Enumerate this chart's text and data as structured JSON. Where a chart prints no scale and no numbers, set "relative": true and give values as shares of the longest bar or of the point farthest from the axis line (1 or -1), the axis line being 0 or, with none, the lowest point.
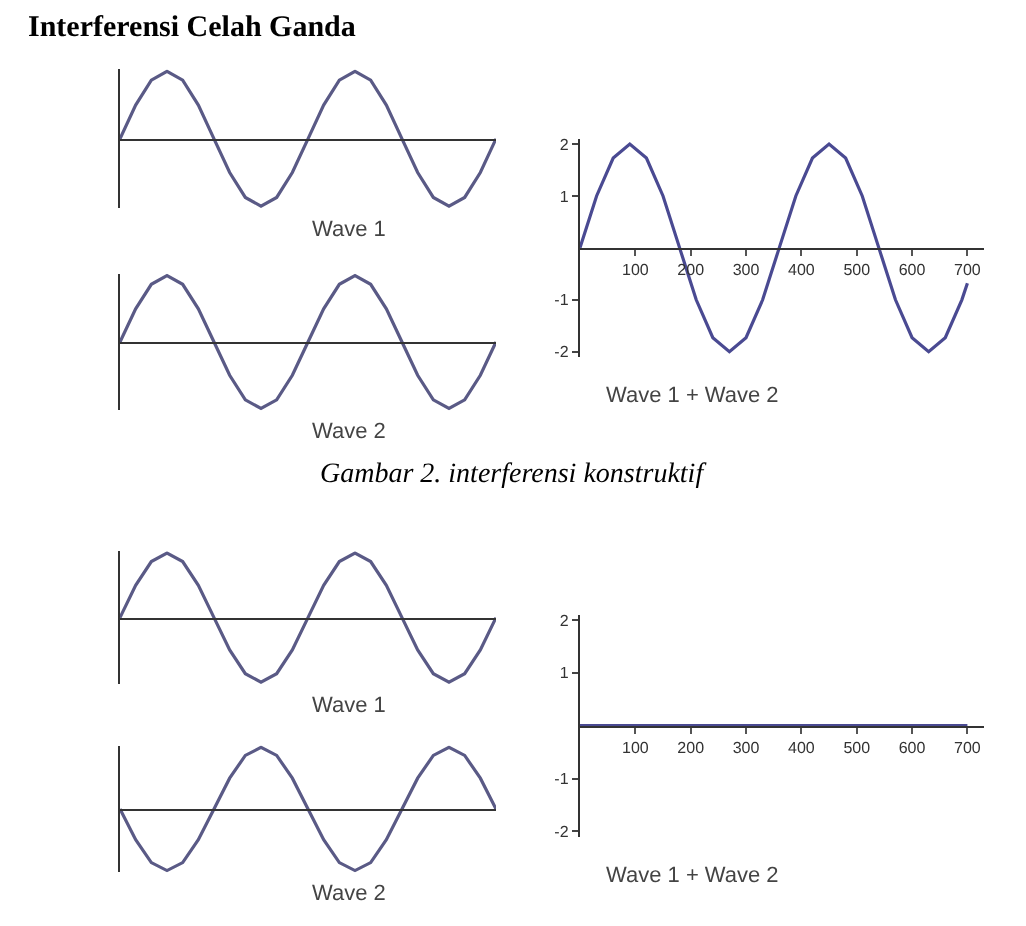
{
  "chart_data": [
    {
      "type": "line",
      "title": "Interferensi Celah Ganda",
      "xlabel": "Wave 1",
      "relative": true,
      "categories": [
        null,
        null,
        null,
        null,
        null,
        null,
        null,
        null,
        null,
        null,
        null,
        null,
        null,
        null,
        null,
        null,
        null,
        null,
        null,
        null,
        null,
        null,
        null,
        null,
        null
      ],
      "series": [
        {
          "color": "#5a5a86",
          "values": [
            0,
            0.5,
            0.87,
            1,
            0.87,
            0.5,
            0,
            -0.5,
            -0.87,
            -1,
            -0.87,
            -0.5,
            0,
            0.5,
            0.87,
            1,
            0.87,
            0.5,
            0,
            -0.5,
            -0.87,
            -1,
            -0.87,
            -0.5,
            0
          ]
        }
      ]
    },
    {
      "type": "line",
      "xlabel": "Wave 2",
      "relative": true,
      "categories": [
        null,
        null,
        null,
        null,
        null,
        null,
        null,
        null,
        null,
        null,
        null,
        null,
        null,
        null,
        null,
        null,
        null,
        null,
        null,
        null,
        null,
        null,
        null,
        null,
        null
      ],
      "series": [
        {
          "color": "#5a5a86",
          "values": [
            0,
            0.5,
            0.87,
            1,
            0.87,
            0.5,
            0,
            -0.5,
            -0.87,
            -1,
            -0.87,
            -0.5,
            0,
            0.5,
            0.87,
            1,
            0.87,
            0.5,
            0,
            -0.5,
            -0.87,
            -1,
            -0.87,
            -0.5,
            0
          ]
        }
      ]
    },
    {
      "type": "line",
      "xlabel": "Wave 1 + Wave 2",
      "annotations": [
        "Gambar 2. interferensi konstruktif"
      ],
      "x": [
        0,
        30,
        60,
        90,
        120,
        150,
        180,
        210,
        240,
        270,
        300,
        330,
        360,
        390,
        420,
        450,
        480,
        510,
        540,
        570,
        600,
        630,
        660,
        690,
        700
      ],
      "xlim": [
        0,
        730
      ],
      "xticks": [
        100,
        200,
        300,
        400,
        500,
        600,
        700
      ],
      "ylim": [
        -2.1,
        2.1
      ],
      "yticks": [
        -2,
        -1,
        1,
        2
      ],
      "series": [
        {
          "color": "#4a4a92",
          "values": [
            0,
            1,
            1.73,
            2,
            1.73,
            1,
            0,
            -1,
            -1.73,
            -2,
            -1.73,
            -1,
            0,
            1,
            1.73,
            2,
            1.73,
            1,
            0,
            -1,
            -1.73,
            -2,
            -1.73,
            -1,
            -0.68
          ]
        }
      ]
    },
    {
      "type": "line",
      "xlabel": "Wave 1",
      "relative": true,
      "categories": [
        null,
        null,
        null,
        null,
        null,
        null,
        null,
        null,
        null,
        null,
        null,
        null,
        null,
        null,
        null,
        null,
        null,
        null,
        null,
        null,
        null,
        null,
        null,
        null,
        null
      ],
      "series": [
        {
          "color": "#5a5a86",
          "values": [
            0,
            0.5,
            0.87,
            1,
            0.87,
            0.5,
            0,
            -0.5,
            -0.87,
            -1,
            -0.87,
            -0.5,
            0,
            0.5,
            0.87,
            1,
            0.87,
            0.5,
            0,
            -0.5,
            -0.87,
            -1,
            -0.87,
            -0.5,
            0
          ]
        }
      ]
    },
    {
      "type": "line",
      "xlabel": "Wave 2",
      "relative": true,
      "categories": [
        null,
        null,
        null,
        null,
        null,
        null,
        null,
        null,
        null,
        null,
        null,
        null,
        null,
        null,
        null,
        null,
        null,
        null,
        null,
        null,
        null,
        null,
        null,
        null,
        null
      ],
      "series": [
        {
          "color": "#5a5a86",
          "values": [
            0,
            -0.5,
            -0.87,
            -1,
            -0.87,
            -0.5,
            0,
            0.5,
            0.87,
            1,
            0.87,
            0.5,
            0,
            -0.5,
            -0.87,
            -1,
            -0.87,
            -0.5,
            0,
            0.5,
            0.87,
            1,
            0.87,
            0.5,
            0
          ]
        }
      ]
    },
    {
      "type": "line",
      "xlabel": "Wave 1 + Wave 2",
      "x": [
        0,
        100,
        200,
        300,
        400,
        500,
        600,
        700
      ],
      "xlim": [
        0,
        730
      ],
      "xticks": [
        100,
        200,
        300,
        400,
        500,
        600,
        700
      ],
      "ylim": [
        -2.1,
        2.1
      ],
      "yticks": [
        -2,
        -1,
        1,
        2
      ],
      "series": [
        {
          "color": "#4a4a92",
          "values": [
            0,
            0,
            0,
            0,
            0,
            0,
            0,
            0
          ]
        }
      ]
    }
  ]
}
